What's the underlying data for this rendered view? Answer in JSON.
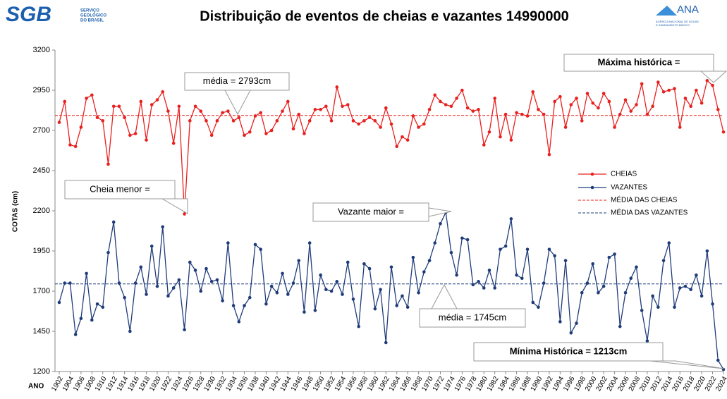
{
  "header": {
    "logo_left": "SGB",
    "logo_left_caption": [
      "SERVIÇO",
      "GEOLÓGICO",
      "DO BRASIL"
    ],
    "logo_right": "ANA",
    "logo_right_caption": [
      "AGÊNCIA NACIONAL DE ÁGUAS",
      "E SANEAMENTO BÁSICO"
    ]
  },
  "chart_data": {
    "type": "line",
    "title": "Distribuição de eventos de cheias e vazantes 14990000",
    "x_label": "ANO",
    "y_label": "COTAS (cm)",
    "x": [
      1902,
      1903,
      1904,
      1905,
      1906,
      1907,
      1908,
      1909,
      1910,
      1911,
      1912,
      1913,
      1914,
      1915,
      1916,
      1917,
      1918,
      1919,
      1920,
      1921,
      1922,
      1923,
      1924,
      1925,
      1926,
      1927,
      1928,
      1929,
      1930,
      1931,
      1932,
      1933,
      1934,
      1935,
      1936,
      1937,
      1938,
      1939,
      1940,
      1941,
      1942,
      1943,
      1944,
      1945,
      1946,
      1947,
      1948,
      1949,
      1950,
      1951,
      1952,
      1953,
      1954,
      1955,
      1956,
      1957,
      1958,
      1959,
      1960,
      1961,
      1962,
      1963,
      1964,
      1965,
      1966,
      1967,
      1968,
      1969,
      1970,
      1971,
      1972,
      1973,
      1974,
      1975,
      1976,
      1977,
      1978,
      1979,
      1980,
      1981,
      1982,
      1983,
      1984,
      1985,
      1986,
      1987,
      1988,
      1989,
      1990,
      1991,
      1992,
      1993,
      1994,
      1995,
      1996,
      1997,
      1998,
      1999,
      2000,
      2001,
      2002,
      2003,
      2004,
      2005,
      2006,
      2007,
      2008,
      2009,
      2010,
      2011,
      2012,
      2013,
      2014,
      2015,
      2016,
      2017,
      2018,
      2019,
      2020,
      2021,
      2022,
      2023,
      2024
    ],
    "xlim": [
      1902,
      2024
    ],
    "xticks": [
      1902,
      1904,
      1906,
      1908,
      1910,
      1912,
      1914,
      1916,
      1918,
      1920,
      1922,
      1924,
      1926,
      1928,
      1930,
      1932,
      1934,
      1936,
      1938,
      1940,
      1942,
      1944,
      1946,
      1948,
      1950,
      1952,
      1954,
      1956,
      1958,
      1960,
      1962,
      1964,
      1966,
      1968,
      1970,
      1972,
      1974,
      1976,
      1978,
      1980,
      1982,
      1984,
      1986,
      1988,
      1990,
      1992,
      1994,
      1996,
      1998,
      2000,
      2002,
      2004,
      2006,
      2008,
      2010,
      2012,
      2014,
      2016,
      2018,
      2020,
      2022,
      2024
    ],
    "ylim": [
      1200,
      3200
    ],
    "yticks": [
      1200,
      1450,
      1700,
      1950,
      2200,
      2450,
      2700,
      2950,
      3200
    ],
    "grid": false,
    "series": [
      {
        "name": "CHEIAS",
        "color": "#e8201e",
        "values": [
          2750,
          2880,
          2610,
          2600,
          2720,
          2900,
          2920,
          2780,
          2760,
          2490,
          2850,
          2850,
          2780,
          2670,
          2680,
          2880,
          2640,
          2860,
          2890,
          2940,
          2820,
          2620,
          2850,
          2180,
          2760,
          2850,
          2820,
          2760,
          2670,
          2760,
          2810,
          2820,
          2760,
          2780,
          2670,
          2690,
          2790,
          2810,
          2680,
          2700,
          2760,
          2820,
          2880,
          2710,
          2800,
          2680,
          2760,
          2830,
          2830,
          2850,
          2760,
          2970,
          2850,
          2860,
          2760,
          2740,
          2760,
          2780,
          2760,
          2720,
          2840,
          2740,
          2600,
          2660,
          2640,
          2790,
          2720,
          2740,
          2830,
          2920,
          2880,
          2860,
          2850,
          2900,
          2950,
          2840,
          2820,
          2830,
          2610,
          2690,
          2900,
          2660,
          2800,
          2640,
          2810,
          2800,
          2790,
          2940,
          2830,
          2800,
          2550,
          2880,
          2910,
          2720,
          2860,
          2900,
          2760,
          2930,
          2870,
          2840,
          2930,
          2880,
          2720,
          2800,
          2890,
          2820,
          2860,
          2990,
          2800,
          2850,
          3000,
          2940,
          2950,
          2960,
          2720,
          2900,
          2850,
          2950,
          2870,
          3010,
          2980,
          2830,
          2690
        ]
      },
      {
        "name": "VAZANTES",
        "color": "#1f3c7a",
        "values": [
          1630,
          1750,
          1750,
          1430,
          1530,
          1810,
          1520,
          1620,
          1600,
          1940,
          2130,
          1750,
          1660,
          1450,
          1750,
          1850,
          1680,
          1980,
          1730,
          2100,
          1670,
          1720,
          1770,
          1460,
          1880,
          1830,
          1700,
          1840,
          1760,
          1770,
          1640,
          2000,
          1610,
          1510,
          1610,
          1660,
          1990,
          1960,
          1620,
          1730,
          1690,
          1810,
          1680,
          1750,
          1890,
          1570,
          2000,
          1580,
          1800,
          1710,
          1700,
          1760,
          1680,
          1880,
          1650,
          1480,
          1870,
          1840,
          1590,
          1710,
          1380,
          1850,
          1610,
          1670,
          1600,
          1910,
          1690,
          1820,
          1890,
          2000,
          2120,
          2190,
          1940,
          1800,
          2030,
          2020,
          1740,
          1760,
          1720,
          1830,
          1720,
          1960,
          1980,
          2150,
          1800,
          1780,
          1960,
          1630,
          1600,
          1750,
          1960,
          1920,
          1510,
          1890,
          1440,
          1500,
          1690,
          1750,
          1870,
          1690,
          1730,
          1910,
          1930,
          1480,
          1690,
          1780,
          1850,
          1580,
          1390,
          1670,
          1600,
          1890,
          2000,
          1600,
          1720,
          1730,
          1710,
          1800,
          1670,
          1950,
          1620,
          1270,
          1213
        ]
      }
    ],
    "mean_lines": [
      {
        "name": "MÉDIA DAS CHEIAS",
        "color": "#e8201e",
        "value": 2793
      },
      {
        "name": "MÉDIA DAS VAZANTES",
        "color": "#1f3c7a",
        "value": 1745
      }
    ],
    "annotations": [
      "média = 2793cm",
      "Máxima histórica =",
      "Cheia menor =",
      "Vazante maior =",
      "média = 1745cm",
      "Mínima Histórica = 1213cm"
    ],
    "legend_position": "right"
  }
}
